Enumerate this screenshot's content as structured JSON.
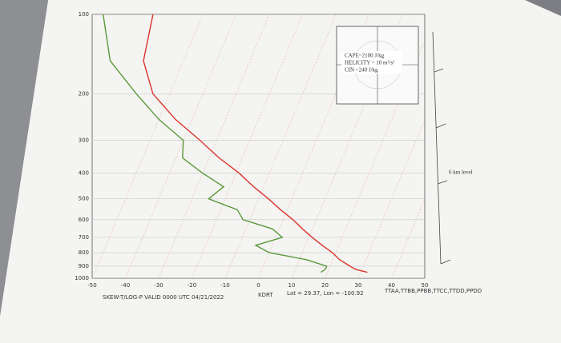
{
  "chart_data": {
    "type": "skewt",
    "title": "SKEW-T/LOG-P  VALID 0000 UTC 04/21/2022",
    "station": "KDRT",
    "location": "Lat = 29.37, Lon = -100.92",
    "source": "TTAA,TTBB,PPBB,TTCC,TTDD,PPDD",
    "annotations": [
      "CAPE~2100 J/kg",
      "HELICITY ~ 10 m²/s²",
      "CIN ~240 J/kg",
      "6 km level"
    ],
    "pressure": [
      950,
      925,
      900,
      850,
      800,
      750,
      700,
      650,
      600,
      550,
      500,
      450,
      400,
      350,
      300,
      250,
      200,
      150,
      100
    ],
    "series": [
      {
        "name": "Temperature",
        "color": "#d9342b",
        "values": [
          32,
          28,
          26,
          22,
          19,
          15,
          11,
          7,
          3,
          -2,
          -7,
          -13,
          -19,
          -27,
          -35,
          -45,
          -55,
          -62,
          -65
        ]
      },
      {
        "name": "Dewpoint",
        "color": "#5a9a3a",
        "values": [
          18,
          19,
          19,
          12,
          0,
          -5,
          2,
          -2,
          -12,
          -15,
          -25,
          -22,
          -30,
          -38,
          -40,
          -50,
          -60,
          -72,
          -80
        ]
      }
    ],
    "xlim": [
      -50,
      50
    ],
    "xticks": [
      -50,
      -40,
      -30,
      -20,
      -10,
      0,
      10,
      20,
      30,
      40,
      50
    ],
    "ylim": [
      1000,
      100
    ],
    "yticks": [
      100,
      200,
      300,
      400,
      500,
      600,
      700,
      800,
      900,
      1000
    ],
    "log_y": true,
    "grid": true
  }
}
